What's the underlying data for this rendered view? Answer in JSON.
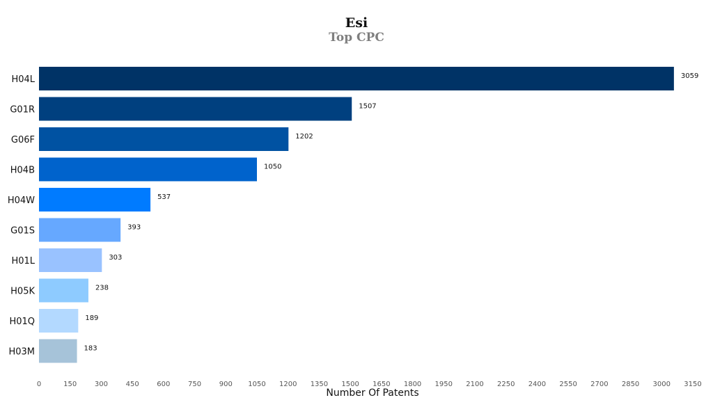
{
  "chart_data": {
    "type": "bar",
    "orientation": "horizontal",
    "title": "Esi",
    "subtitle": "Top CPC",
    "xlabel": "Number Of Patents",
    "ylabel": "",
    "xlim": [
      0,
      3150
    ],
    "x_ticks": [
      0,
      150,
      300,
      450,
      600,
      750,
      900,
      1050,
      1200,
      1350,
      1500,
      1650,
      1800,
      1950,
      2100,
      2250,
      2400,
      2550,
      2700,
      2850,
      3000,
      3150
    ],
    "grid": false,
    "legend": "none",
    "categories": [
      "H04L",
      "G01R",
      "G06F",
      "H04B",
      "H04W",
      "G01S",
      "H01L",
      "H05K",
      "H01Q",
      "H03M"
    ],
    "values": [
      3059,
      1507,
      1202,
      1050,
      537,
      393,
      303,
      238,
      189,
      183
    ],
    "colors": [
      "#003366",
      "#00407f",
      "#0052a2",
      "#0063cc",
      "#007bff",
      "#66a8ff",
      "#99c2ff",
      "#8ecbff",
      "#b3d9ff",
      "#a6c3d9"
    ]
  }
}
